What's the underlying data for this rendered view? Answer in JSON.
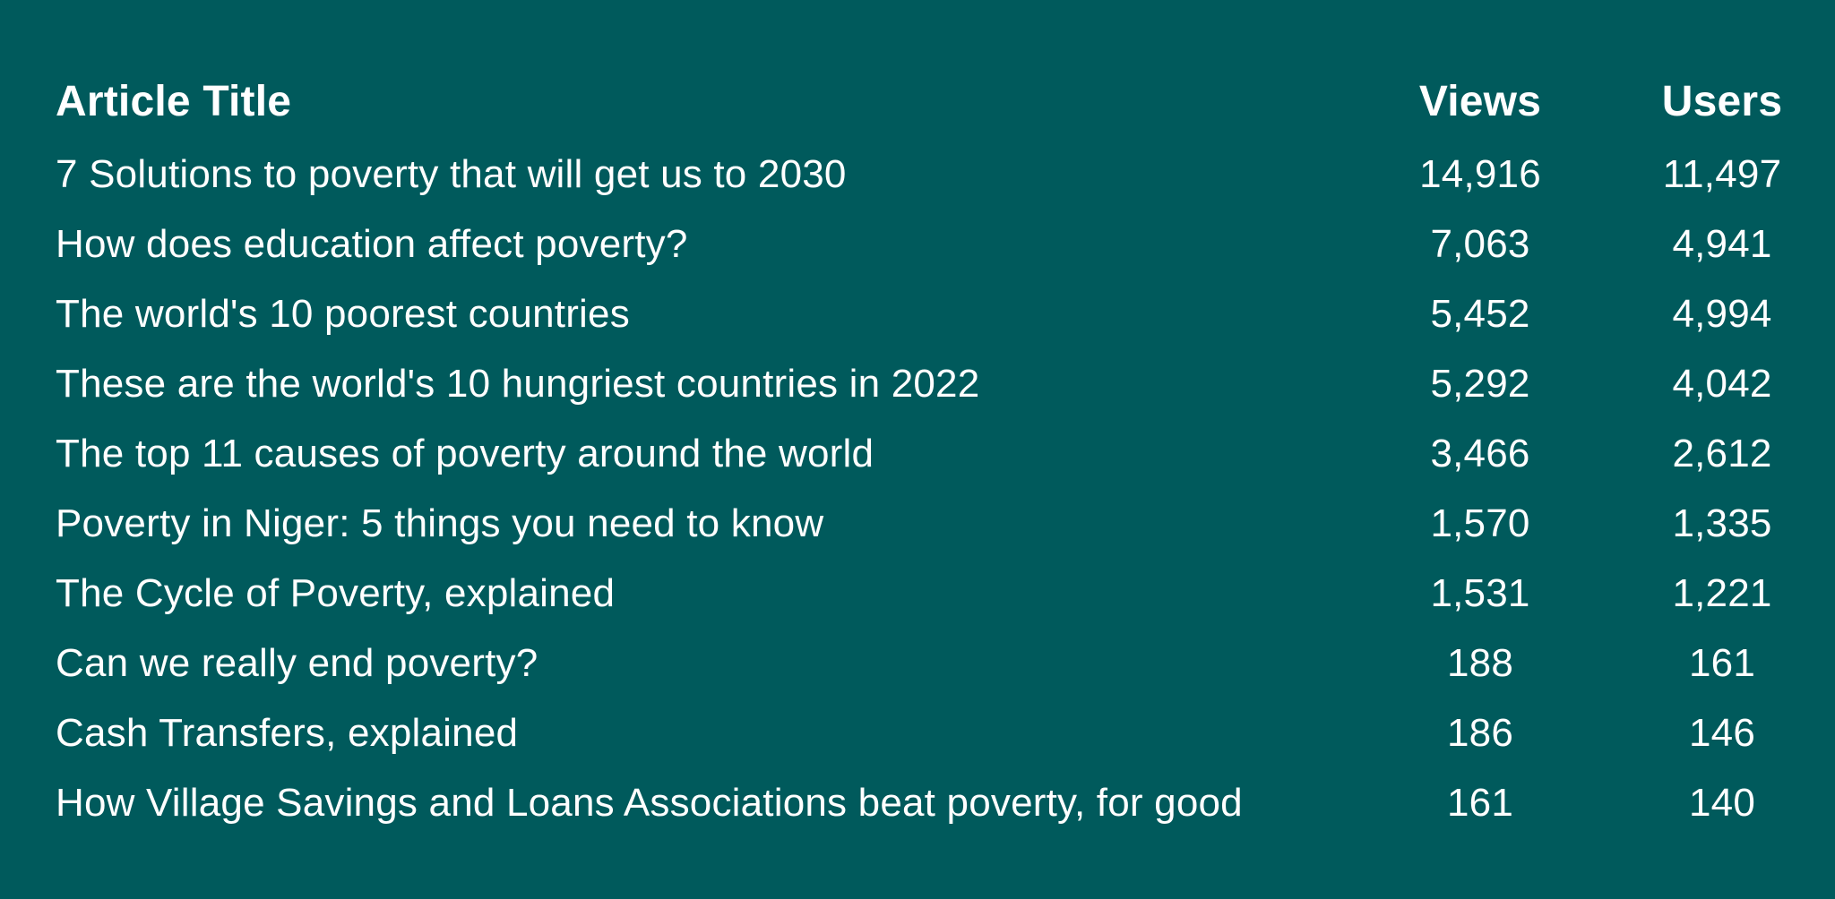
{
  "table": {
    "headers": {
      "title": "Article Title",
      "views": "Views",
      "users": "Users"
    },
    "rows": [
      {
        "title": "7 Solutions to poverty that will get us to 2030",
        "views": "14,916",
        "users": "11,497"
      },
      {
        "title": "How does education affect poverty?",
        "views": "7,063",
        "users": "4,941"
      },
      {
        "title": "The world's 10 poorest countries",
        "views": "5,452",
        "users": "4,994"
      },
      {
        "title": "These are the world's 10 hungriest countries in 2022",
        "views": "5,292",
        "users": "4,042"
      },
      {
        "title": "The top 11 causes of poverty around the world",
        "views": "3,466",
        "users": "2,612"
      },
      {
        "title": "Poverty in Niger: 5 things you need to know",
        "views": "1,570",
        "users": "1,335"
      },
      {
        "title": "The Cycle of Poverty, explained",
        "views": "1,531",
        "users": "1,221"
      },
      {
        "title": "Can we really end poverty?",
        "views": "188",
        "users": "161"
      },
      {
        "title": "Cash Transfers, explained",
        "views": "186",
        "users": "146"
      },
      {
        "title": "How Village Savings and Loans Associations beat poverty, for good",
        "views": "161",
        "users": "140"
      }
    ]
  },
  "colors": {
    "background": "#005a5c",
    "text": "#ffffff"
  }
}
